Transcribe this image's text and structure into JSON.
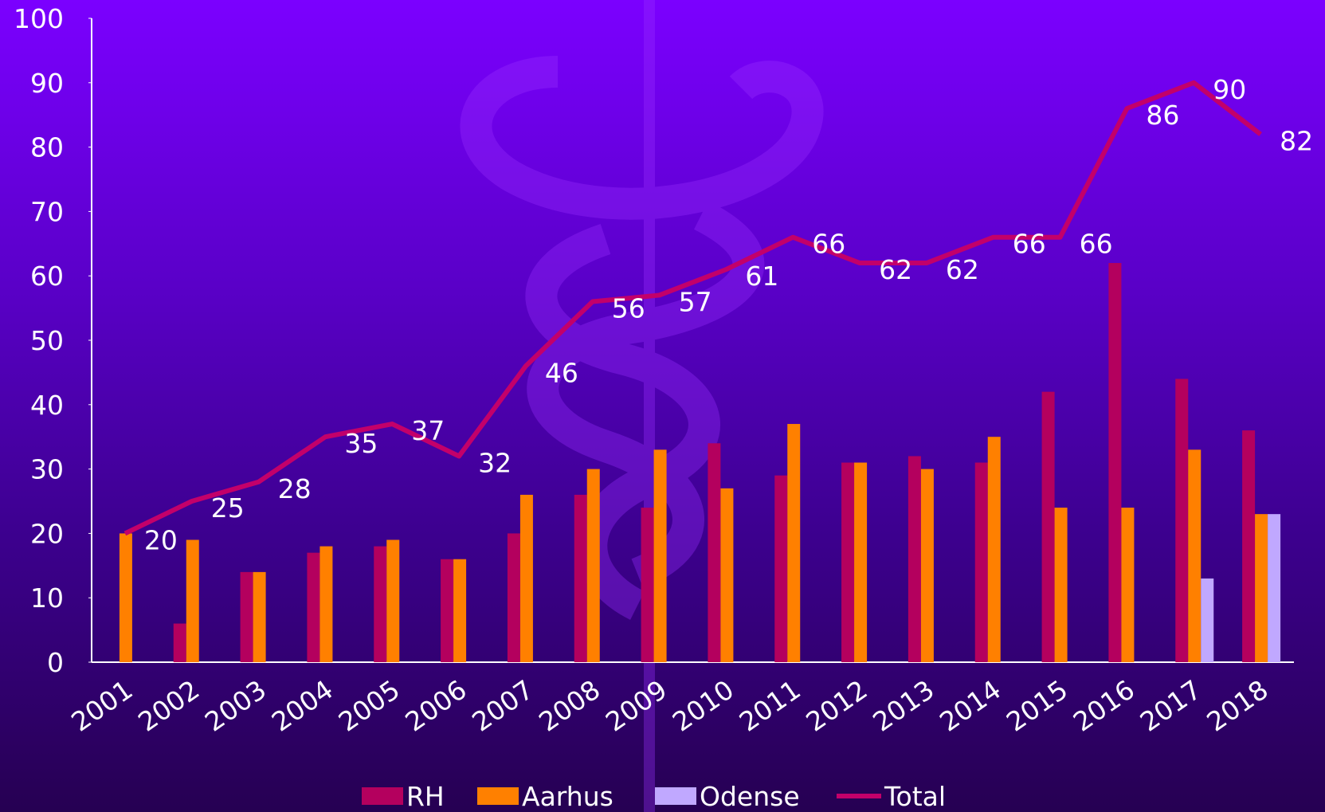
{
  "chart_data": {
    "type": "bar",
    "categories": [
      "2001",
      "2002",
      "2003",
      "2004",
      "2005",
      "2006",
      "2007",
      "2008",
      "2009",
      "2010",
      "2011",
      "2012",
      "2013",
      "2014",
      "2015",
      "2016",
      "2017",
      "2018"
    ],
    "series": [
      {
        "name": "RH",
        "color": "#b4005e",
        "values": [
          0,
          6,
          14,
          17,
          18,
          16,
          20,
          26,
          24,
          34,
          29,
          31,
          32,
          31,
          42,
          62,
          44,
          36
        ]
      },
      {
        "name": "Aarhus",
        "color": "#ff8000",
        "values": [
          20,
          19,
          14,
          18,
          19,
          16,
          26,
          30,
          33,
          27,
          37,
          31,
          30,
          35,
          24,
          24,
          33,
          23
        ]
      },
      {
        "name": "Odense",
        "color": "#c0a8ff",
        "values": [
          0,
          0,
          0,
          0,
          0,
          0,
          0,
          0,
          0,
          0,
          0,
          0,
          0,
          0,
          0,
          0,
          13,
          23
        ]
      },
      {
        "name": "Total",
        "type": "line",
        "color": "#c3006a",
        "values": [
          20,
          25,
          28,
          35,
          37,
          32,
          46,
          56,
          57,
          61,
          66,
          62,
          62,
          66,
          66,
          86,
          90,
          82
        ]
      }
    ],
    "ylim": [
      0,
      100
    ],
    "yticks": [
      0,
      10,
      20,
      30,
      40,
      50,
      60,
      70,
      80,
      90,
      100
    ],
    "grid": false,
    "legend": "bottom"
  }
}
